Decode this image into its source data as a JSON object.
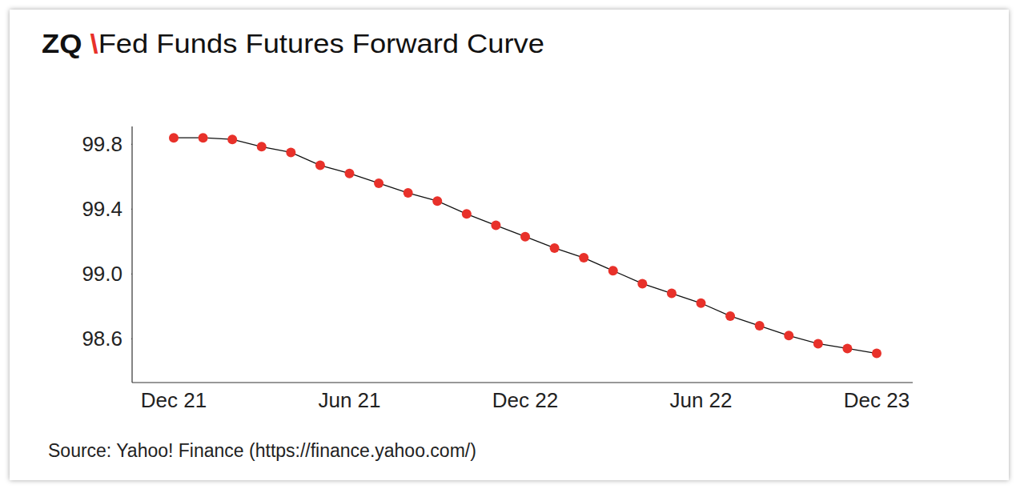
{
  "chart_data": {
    "type": "line",
    "title": "ZQ \\Fed Funds Futures Forward Curve",
    "source": "Source: Yahoo! Finance (https://finance.yahoo.com/)",
    "categories": [
      "Dec 21",
      null,
      null,
      null,
      null,
      null,
      "Jun 21",
      null,
      null,
      null,
      null,
      null,
      "Dec 22",
      null,
      null,
      null,
      null,
      null,
      "Jun 22",
      null,
      null,
      null,
      null,
      null,
      "Dec 23"
    ],
    "values": [
      99.84,
      99.84,
      99.83,
      99.785,
      99.75,
      99.67,
      99.62,
      99.56,
      99.5,
      99.45,
      99.37,
      99.3,
      99.23,
      99.16,
      99.1,
      99.02,
      98.94,
      98.88,
      98.82,
      98.74,
      98.68,
      98.62,
      98.57,
      98.54,
      98.51
    ],
    "color": "#e8312a",
    "marker": "circle",
    "ylim": [
      98.33,
      99.91
    ],
    "yticks": [
      99.8,
      99.4,
      {
        "value": 99,
        "label": "99.0"
      },
      98.6
    ],
    "grid": false
  }
}
